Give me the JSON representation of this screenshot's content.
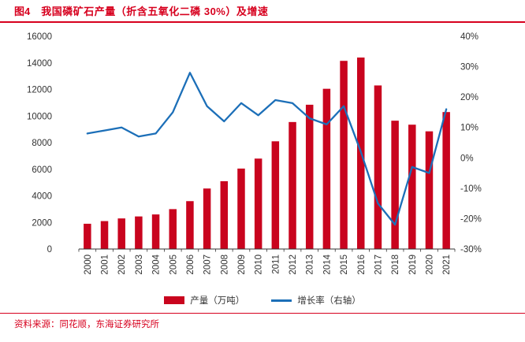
{
  "header": {
    "figure_label": "图4",
    "title": "我国磷矿石产量（折含五氧化二磷 30%）及增速"
  },
  "footer": {
    "source": "资料来源：同花顺，东海证券研究所"
  },
  "colors": {
    "accent_red": "#d7001e",
    "bar_red": "#c9041e",
    "line_blue": "#1c6fb8",
    "axis_text": "#333333"
  },
  "chart_data": {
    "type": "bar+line",
    "categories": [
      "2000",
      "2001",
      "2002",
      "2003",
      "2004",
      "2005",
      "2006",
      "2007",
      "2008",
      "2009",
      "2010",
      "2011",
      "2012",
      "2013",
      "2014",
      "2015",
      "2016",
      "2017",
      "2018",
      "2019",
      "2020",
      "2021"
    ],
    "series": [
      {
        "name": "产量（万吨）",
        "type": "bar",
        "axis": "left",
        "values": [
          1900,
          2100,
          2300,
          2450,
          2600,
          3000,
          3600,
          4550,
          5100,
          6050,
          6800,
          8100,
          9550,
          10850,
          12050,
          14150,
          14400,
          12300,
          9650,
          9350,
          8850,
          10300
        ]
      },
      {
        "name": "增长率（右轴）",
        "type": "line",
        "axis": "right",
        "values": [
          8,
          9,
          10,
          7,
          8,
          15,
          28,
          17,
          12,
          18,
          14,
          19,
          18,
          13,
          11,
          17,
          2,
          -15,
          -22,
          -3,
          -5,
          16
        ]
      }
    ],
    "left_axis": {
      "min": 0,
      "max": 16000,
      "step": 2000
    },
    "right_axis": {
      "min": -30,
      "max": 40,
      "step": 10,
      "format": "percent"
    },
    "grid": false,
    "legend_position": "bottom"
  }
}
